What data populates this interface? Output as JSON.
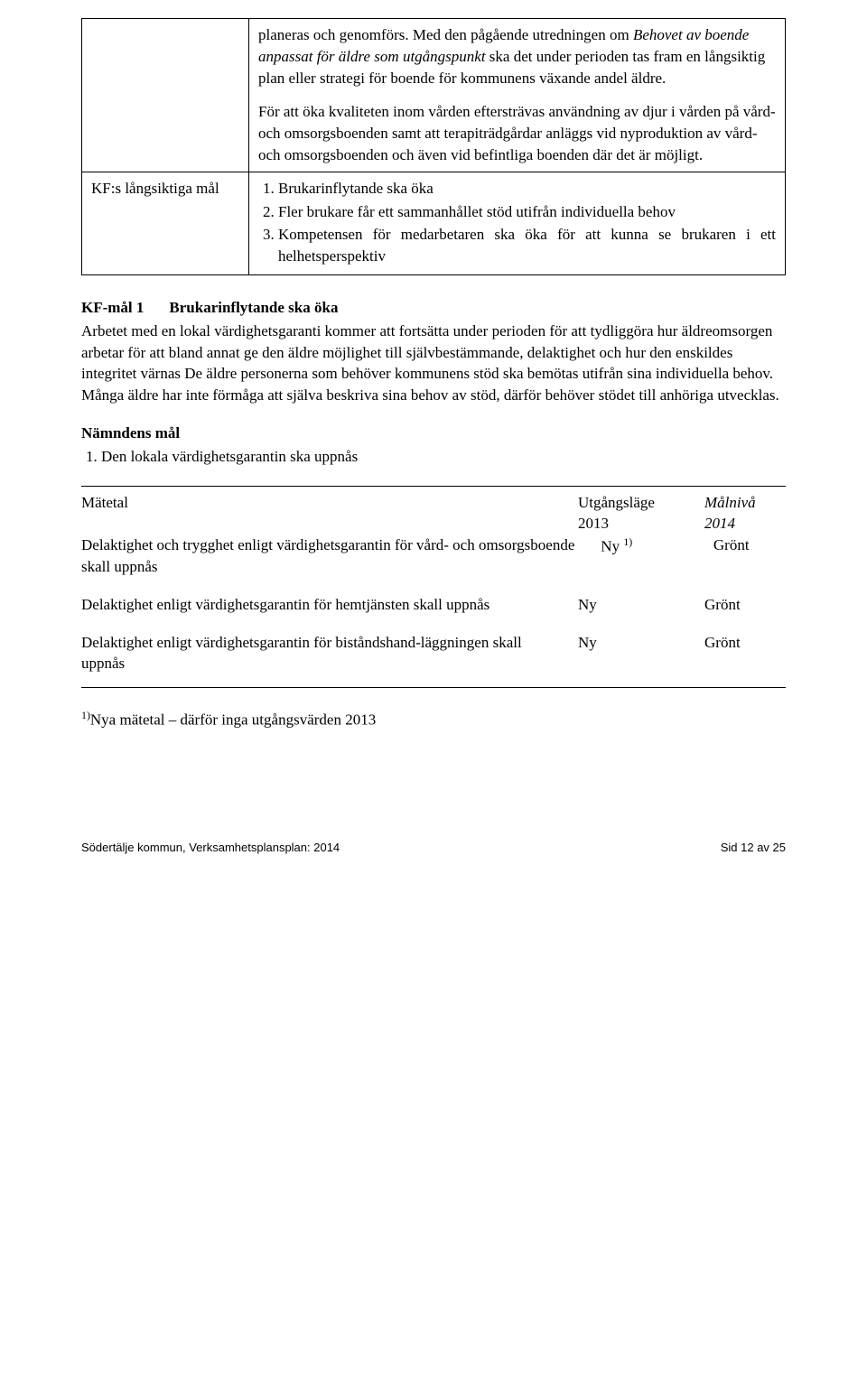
{
  "table": {
    "row1": {
      "para1_pre": "planeras och genomförs. Med den pågående utredningen om ",
      "para1_italic": "Behovet av boende anpassat för äldre som utgångspunkt",
      "para1_post": " ska det under perioden tas fram en långsiktig plan eller strategi för boende för kommunens växande andel äldre.",
      "para2": "För att öka kvaliteten inom vården eftersträvas användning av djur i vården på vård- och omsorgsboenden samt att terapiträdgårdar anläggs vid nyproduktion av vård- och omsorgsboenden och även vid befintliga boenden där det är möjligt."
    },
    "row2": {
      "leftLabel": "KF:s långsiktiga mål",
      "goals": [
        "Brukarinflytande ska öka",
        "Fler brukare får ett sammanhållet stöd utifrån individuella behov",
        "Kompetensen för medarbetaren ska öka för att kunna se brukaren i ett helhetsperspektiv"
      ]
    }
  },
  "kfmal1": {
    "label": "KF-mål 1",
    "title": "Brukarinflytande ska öka",
    "body": "Arbetet med en lokal värdighetsgaranti kommer att fortsätta under perioden för att tydliggöra hur äldreomsorgen arbetar för att bland annat ge den äldre möjlighet till självbestämmande, delaktighet och hur den enskildes integritet värnas De äldre personerna som behöver kommunens stöd ska bemötas utifrån sina individuella behov. Många äldre har inte förmåga att själva beskriva sina behov av stöd, därför behöver stödet till anhöriga utvecklas."
  },
  "namndens": {
    "heading": "Nämndens mål",
    "items": [
      "Den lokala värdighetsgarantin ska uppnås"
    ]
  },
  "metrics": {
    "header": {
      "c1": "Mätetal",
      "c2a": "Utgångsläge",
      "c2b": "2013",
      "c3a": "Målnivå",
      "c3b": "2014"
    },
    "rows": [
      {
        "label": "Delaktighet och trygghet enligt värdighetsgarantin för vård- och omsorgsboende skall uppnås",
        "c2": "Ny ",
        "sup": "1)",
        "c3": "Grönt"
      },
      {
        "label": "Delaktighet enligt värdighetsgarantin för hemtjänsten skall uppnås",
        "c2": "Ny",
        "sup": "",
        "c3": "Grönt"
      },
      {
        "label": "Delaktighet enligt värdighetsgarantin för biståndshand-läggningen skall uppnås",
        "c2": "Ny",
        "sup": "",
        "c3": "Grönt"
      }
    ]
  },
  "footnote": {
    "sup": "1)",
    "text": "Nya mätetal – därför inga utgångsvärden 2013"
  },
  "footer": {
    "left": "Södertälje kommun, Verksamhetsplansplan: 2014",
    "right": "Sid 12 av 25"
  }
}
